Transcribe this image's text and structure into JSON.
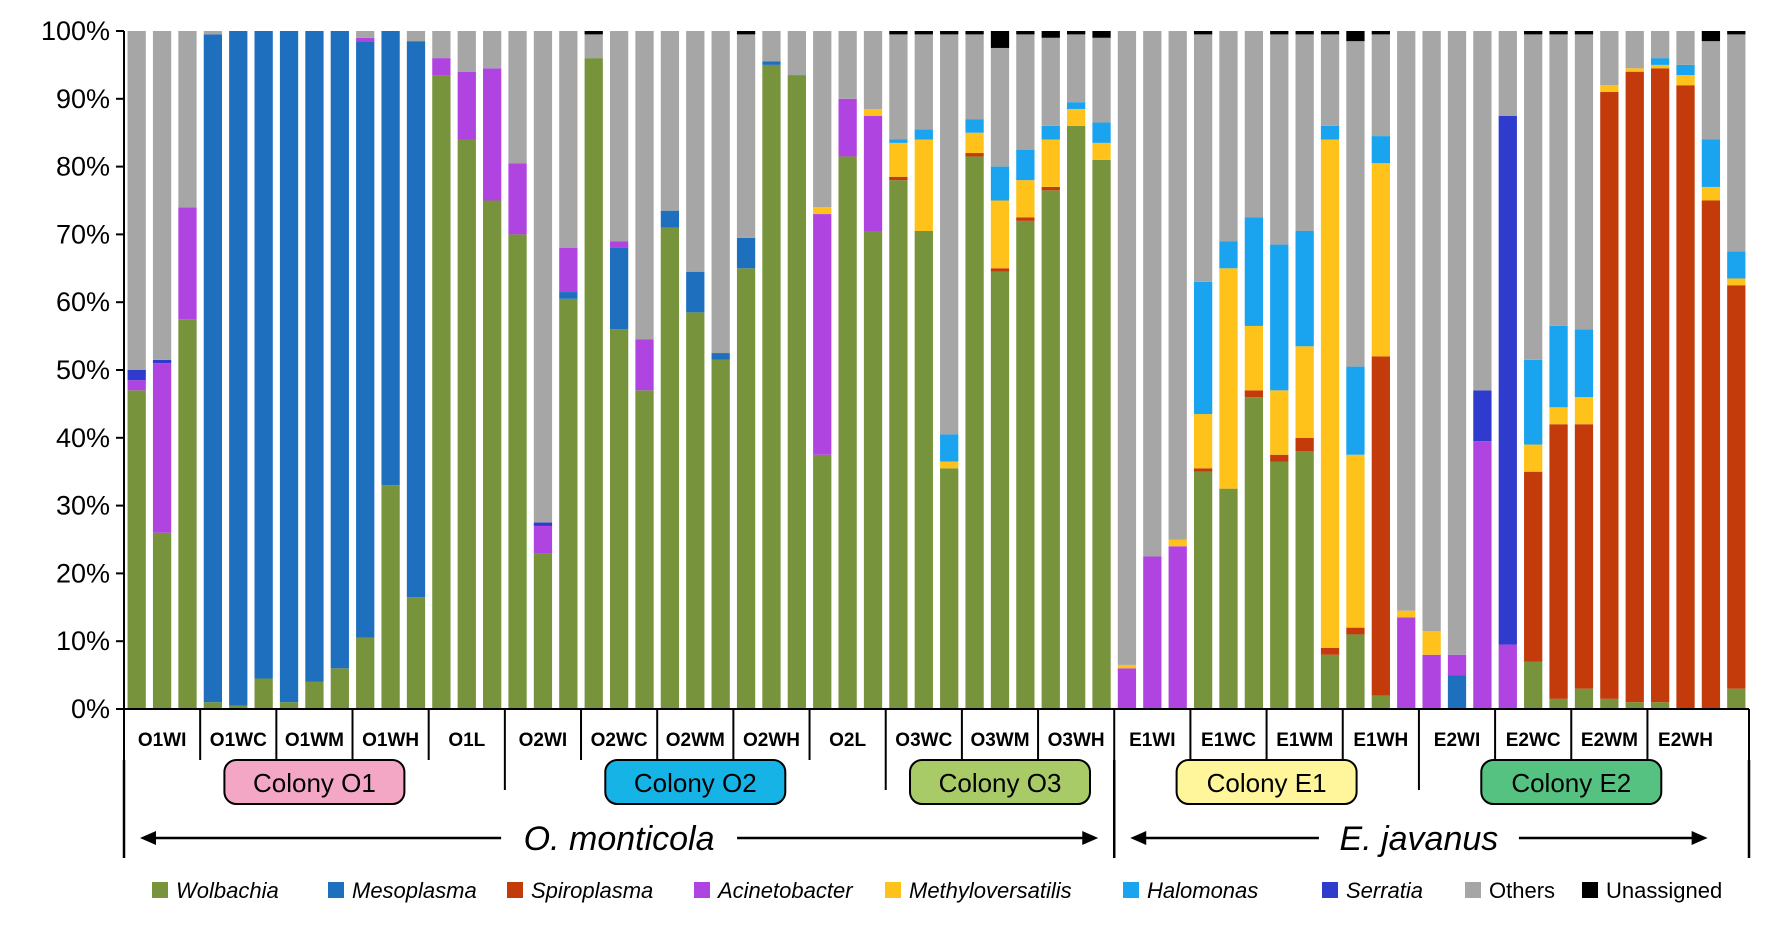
{
  "chart_data": {
    "type": "bar",
    "stacked": true,
    "ylim": [
      0,
      100
    ],
    "yticks": [
      "0%",
      "10%",
      "20%",
      "30%",
      "40%",
      "50%",
      "60%",
      "70%",
      "80%",
      "90%",
      "100%"
    ],
    "taxa": [
      "Wolbachia",
      "Mesoplasma",
      "Spiroplasma",
      "Acinetobacter",
      "Methyloversatilis",
      "Halomonas",
      "Serratia",
      "Others",
      "Unassigned"
    ],
    "colors": [
      "#77933c",
      "#1f6fbf",
      "#c33a0b",
      "#b044e0",
      "#ffc21a",
      "#1aa3ee",
      "#2e3bcc",
      "#a6a6a6",
      "#000000"
    ],
    "legend": [
      {
        "label": "Wolbachia",
        "italic": true
      },
      {
        "label": "Mesoplasma",
        "italic": true
      },
      {
        "label": "Spiroplasma",
        "italic": true
      },
      {
        "label": "Acinetobacter",
        "italic": true
      },
      {
        "label": "Methyloversatilis",
        "italic": true
      },
      {
        "label": "Halomonas",
        "italic": true
      },
      {
        "label": "Serratia",
        "italic": true
      },
      {
        "label": "Others",
        "italic": false
      },
      {
        "label": "Unassigned",
        "italic": false
      }
    ],
    "bars": [
      [
        47,
        0,
        0,
        1.5,
        0,
        0,
        1.5,
        50,
        0
      ],
      [
        26,
        0,
        0,
        25,
        0,
        0,
        0.5,
        48.5,
        0
      ],
      [
        57.5,
        0,
        0,
        16.5,
        0,
        0,
        0,
        26,
        0
      ],
      [
        1,
        98.5,
        0,
        0,
        0,
        0,
        0,
        0.5,
        0
      ],
      [
        0.5,
        99.5,
        0,
        0,
        0,
        0,
        0,
        0,
        0
      ],
      [
        4.5,
        95.5,
        0,
        0,
        0,
        0,
        0,
        0,
        0
      ],
      [
        1,
        99,
        0,
        0,
        0,
        0,
        0,
        0,
        0
      ],
      [
        4,
        96,
        0,
        0,
        0,
        0,
        0,
        0,
        0
      ],
      [
        6,
        94,
        0,
        0,
        0,
        0,
        0,
        0,
        0
      ],
      [
        10.5,
        88,
        0,
        0.5,
        0,
        0,
        0,
        1,
        0
      ],
      [
        33,
        67,
        0,
        0,
        0,
        0,
        0,
        0,
        0
      ],
      [
        16.5,
        82,
        0,
        0,
        0,
        0,
        0,
        1.5,
        0
      ],
      [
        93.5,
        0,
        0,
        2.5,
        0,
        0,
        0,
        4,
        0
      ],
      [
        84,
        0,
        0,
        10,
        0,
        0,
        0,
        6,
        0
      ],
      [
        75,
        0,
        0,
        19.5,
        0,
        0,
        0,
        5.5,
        0
      ],
      [
        70,
        0,
        0,
        10.5,
        0,
        0,
        0,
        19.5,
        0
      ],
      [
        23,
        0,
        0,
        4,
        0,
        0,
        0.5,
        72.5,
        0
      ],
      [
        60.5,
        1,
        0,
        6.5,
        0,
        0,
        0,
        32,
        0
      ],
      [
        96,
        0,
        0,
        0,
        0,
        0,
        0,
        3.5,
        0.5
      ],
      [
        56,
        12,
        0,
        1,
        0,
        0,
        0,
        31,
        0
      ],
      [
        47,
        0,
        0,
        7.5,
        0,
        0,
        0,
        45.5,
        0
      ],
      [
        71,
        2.5,
        0,
        0,
        0,
        0,
        0,
        26.5,
        0
      ],
      [
        58.5,
        6,
        0,
        0,
        0,
        0,
        0,
        35.5,
        0
      ],
      [
        51.5,
        1,
        0,
        0,
        0,
        0,
        0,
        47.5,
        0
      ],
      [
        65,
        4.5,
        0,
        0,
        0,
        0,
        0,
        30,
        0.5
      ],
      [
        95,
        0.5,
        0,
        0,
        0,
        0,
        0,
        4.5,
        0
      ],
      [
        93.5,
        0,
        0,
        0,
        0,
        0,
        0,
        6.5,
        0
      ],
      [
        37.5,
        0,
        0,
        35.5,
        1,
        0,
        0,
        26,
        0
      ],
      [
        81.5,
        0,
        0,
        8.5,
        0,
        0,
        0,
        10,
        0
      ],
      [
        70.5,
        0,
        0,
        17,
        1,
        0,
        0,
        11.5,
        0
      ],
      [
        78,
        0,
        0.5,
        0,
        5,
        0.5,
        0,
        15.5,
        0.5
      ],
      [
        70.5,
        0,
        0,
        0,
        13.5,
        1.5,
        0,
        14,
        0.5
      ],
      [
        35.5,
        0,
        0,
        0,
        1,
        4,
        0,
        59,
        0.5
      ],
      [
        81.5,
        0,
        0.5,
        0,
        3,
        2,
        0,
        12.5,
        0.5
      ],
      [
        64.5,
        0,
        0.5,
        0,
        10,
        5,
        0,
        17.5,
        2.5
      ],
      [
        72,
        0,
        0.5,
        0,
        5.5,
        4.5,
        0,
        17,
        0.5
      ],
      [
        76.5,
        0,
        0.5,
        0,
        7,
        2,
        0,
        13,
        1
      ],
      [
        86,
        0,
        0,
        0,
        2.5,
        1,
        0,
        10,
        0.5
      ],
      [
        81,
        0,
        0,
        0,
        2.5,
        3,
        0,
        12.5,
        1
      ],
      [
        0,
        0,
        0,
        6,
        0.5,
        0,
        0,
        93.5,
        0
      ],
      [
        0,
        0,
        0,
        22.5,
        0,
        0,
        0,
        77.5,
        0
      ],
      [
        0,
        0,
        0,
        24,
        1,
        0,
        0,
        75,
        0
      ],
      [
        35,
        0,
        0.5,
        0,
        8,
        19.5,
        0,
        36.5,
        0.5
      ],
      [
        32.5,
        0,
        0,
        0,
        32.5,
        4,
        0,
        31,
        0
      ],
      [
        46,
        0,
        1,
        0,
        9.5,
        16,
        0,
        27.5,
        0
      ],
      [
        36.5,
        0,
        1,
        0,
        9.5,
        21.5,
        0,
        31,
        0.5
      ],
      [
        38,
        0,
        2,
        0,
        13.5,
        17,
        0,
        29,
        0.5
      ],
      [
        8,
        0,
        1,
        0,
        75,
        2,
        0,
        13.5,
        0.5
      ],
      [
        11,
        0,
        1,
        0,
        25.5,
        13,
        0,
        48,
        1.5
      ],
      [
        2,
        0,
        50,
        0,
        28.5,
        4,
        0,
        15,
        0.5
      ],
      [
        0,
        0,
        0,
        13.5,
        1,
        0,
        0,
        85.5,
        0
      ],
      [
        0,
        0,
        0,
        8,
        3.5,
        0,
        0,
        88.5,
        0
      ],
      [
        0,
        5,
        0,
        3,
        0,
        0,
        0,
        92,
        0
      ],
      [
        0,
        0,
        0,
        39.5,
        0,
        0,
        7.5,
        53,
        0
      ],
      [
        0,
        0,
        0,
        9.5,
        0,
        0,
        78,
        12.5,
        0
      ],
      [
        7,
        0,
        28,
        0,
        4,
        12.5,
        0,
        48,
        0.5
      ],
      [
        1.5,
        0,
        40.5,
        0,
        2.5,
        12,
        0,
        43,
        0.5
      ],
      [
        3,
        0,
        39,
        0,
        4,
        10,
        0,
        43.5,
        0.5
      ],
      [
        1.5,
        0,
        89.5,
        0,
        1,
        0,
        0,
        8,
        0
      ],
      [
        1,
        0,
        93,
        0,
        0.5,
        0,
        0,
        5.5,
        0
      ],
      [
        1,
        0,
        93.5,
        0,
        0.5,
        1,
        0,
        4,
        0
      ],
      [
        0,
        0,
        92,
        0,
        1.5,
        1.5,
        0,
        5,
        0
      ],
      [
        0,
        0,
        75,
        0,
        2,
        7,
        0,
        14.5,
        1.5
      ],
      [
        3,
        0,
        59.5,
        0,
        1,
        4,
        0,
        32,
        0.5
      ]
    ],
    "sample_labels": [
      "O1WI",
      "O1WC",
      "O1WM",
      "O1WH",
      "O1L",
      "O2WI",
      "O2WC",
      "O2WM",
      "O2WH",
      "O2L",
      "O3WC",
      "O3WM",
      "O3WH",
      "E1WI",
      "E1WC",
      "E1WM",
      "E1WH",
      "E2WI",
      "E2WC",
      "E2WM",
      "E2WH"
    ],
    "sample_group_sizes": [
      3,
      3,
      3,
      3,
      3,
      3,
      3,
      3,
      3,
      3,
      3,
      3,
      3,
      3,
      3,
      3,
      3,
      3,
      3,
      3,
      3
    ],
    "colonies": [
      {
        "label": "Colony O1",
        "color": "#f4a7c4",
        "start": 0,
        "end": 15
      },
      {
        "label": "Colony O2",
        "color": "#16b4e6",
        "start": 15,
        "end": 30
      },
      {
        "label": "Colony O3",
        "color": "#a9cb67",
        "start": 30,
        "end": 39
      },
      {
        "label": "Colony E1",
        "color": "#fff59a",
        "start": 39,
        "end": 51
      },
      {
        "label": "Colony E2",
        "color": "#56c282",
        "start": 51,
        "end": 63
      }
    ],
    "species": [
      {
        "label": "O. monticola",
        "start": 0,
        "end": 39
      },
      {
        "label": "E. javanus",
        "start": 39,
        "end": 63
      }
    ]
  }
}
